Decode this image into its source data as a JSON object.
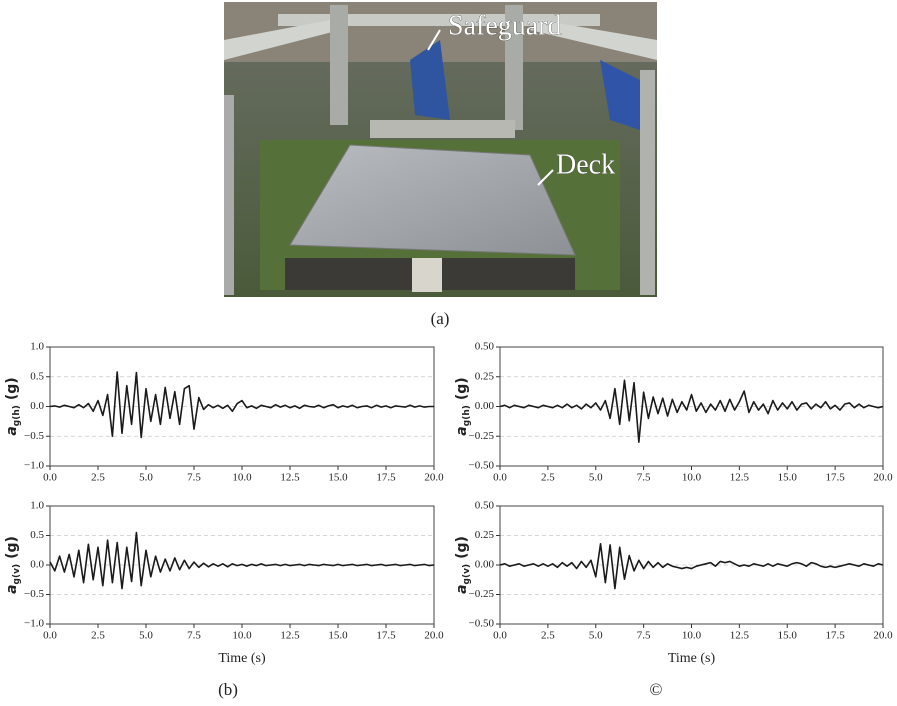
{
  "figure": {
    "photo": {
      "labels": [
        "Safeguard",
        "Deck"
      ],
      "caption": "(a)"
    },
    "captions": [
      "(b)",
      "©"
    ]
  },
  "chart_data": [
    {
      "type": "line",
      "ylabel": {
        "main": "a",
        "sub": "g(h)",
        "unit": "(g)"
      },
      "x": [
        0,
        0.25,
        0.5,
        0.75,
        1,
        1.25,
        1.5,
        1.75,
        2,
        2.25,
        2.5,
        2.75,
        3,
        3.25,
        3.5,
        3.75,
        4,
        4.25,
        4.5,
        4.75,
        5,
        5.25,
        5.5,
        5.75,
        6,
        6.25,
        6.5,
        6.75,
        7,
        7.25,
        7.5,
        7.75,
        8,
        8.25,
        8.5,
        8.75,
        9,
        9.25,
        9.5,
        9.75,
        10,
        10.25,
        10.5,
        10.75,
        11,
        11.25,
        11.5,
        11.75,
        12,
        12.25,
        12.5,
        12.75,
        13,
        13.25,
        13.5,
        13.75,
        14,
        14.25,
        14.5,
        14.75,
        15,
        15.25,
        15.5,
        15.75,
        16,
        16.25,
        16.5,
        16.75,
        17,
        17.25,
        17.5,
        17.75,
        18,
        18.25,
        18.5,
        18.75,
        19,
        19.25,
        19.5,
        19.75,
        20
      ],
      "series": [
        {
          "color": "#1a1a1a",
          "values": [
            0,
            0.01,
            -0.01,
            0.02,
            0,
            -0.02,
            0.03,
            -0.02,
            0.05,
            -0.08,
            0.1,
            -0.15,
            0.2,
            -0.5,
            0.58,
            -0.45,
            0.35,
            -0.3,
            0.57,
            -0.52,
            0.3,
            -0.25,
            0.2,
            -0.3,
            0.32,
            -0.2,
            0.25,
            -0.3,
            0.3,
            0.35,
            -0.38,
            0.15,
            -0.05,
            0.03,
            -0.02,
            0.02,
            -0.03,
            0.02,
            -0.08,
            0.05,
            0.1,
            -0.02,
            0.01,
            -0.03,
            0.02,
            0,
            -0.02,
            0.03,
            -0.01,
            0.02,
            -0.02,
            0.01,
            -0.03,
            0.02,
            0,
            -0.01,
            0.02,
            -0.02,
            0.01,
            0.03,
            -0.02,
            0.01,
            -0.01,
            0.02,
            -0.02,
            0,
            0.01,
            -0.02,
            0.02,
            -0.01,
            0.01,
            -0.02,
            0.01,
            0,
            -0.01,
            0.02,
            -0.01,
            0.01,
            -0.01,
            0,
            0
          ]
        }
      ],
      "xlim": [
        0,
        20
      ],
      "ylim": [
        -1,
        1
      ],
      "xticks": [
        {
          "value": 0,
          "label": "0.0"
        },
        2.5,
        {
          "value": 5,
          "label": "5.0"
        },
        7.5,
        {
          "value": 10,
          "label": "10.0"
        },
        12.5,
        {
          "value": 15,
          "label": "15.0"
        },
        17.5,
        {
          "value": 20,
          "label": "20.0"
        }
      ],
      "yticks": [
        {
          "value": -1,
          "label": "−1.0"
        },
        {
          "value": -0.5,
          "label": "−0.5"
        },
        {
          "value": 0,
          "label": "0.0"
        },
        {
          "value": 0.5,
          "label": "0.5"
        },
        {
          "value": 1,
          "label": "1.0"
        }
      ],
      "grid": true
    },
    {
      "type": "line",
      "ylabel": {
        "main": "a",
        "sub": "g(v)",
        "unit": "(g)"
      },
      "xlabel": "Time (s)",
      "x": [
        0,
        0.25,
        0.5,
        0.75,
        1,
        1.25,
        1.5,
        1.75,
        2,
        2.25,
        2.5,
        2.75,
        3,
        3.25,
        3.5,
        3.75,
        4,
        4.25,
        4.5,
        4.75,
        5,
        5.25,
        5.5,
        5.75,
        6,
        6.25,
        6.5,
        6.75,
        7,
        7.25,
        7.5,
        7.75,
        8,
        8.25,
        8.5,
        8.75,
        9,
        9.25,
        9.5,
        9.75,
        10,
        10.25,
        10.5,
        10.75,
        11,
        11.25,
        11.5,
        11.75,
        12,
        12.25,
        12.5,
        12.75,
        13,
        13.25,
        13.5,
        13.75,
        14,
        14.25,
        14.5,
        14.75,
        15,
        15.25,
        15.5,
        15.75,
        16,
        16.25,
        16.5,
        16.75,
        17,
        17.25,
        17.5,
        17.75,
        18,
        18.25,
        18.5,
        18.75,
        19,
        19.25,
        19.5,
        19.75,
        20
      ],
      "series": [
        {
          "color": "#1a1a1a",
          "values": [
            0.05,
            -0.1,
            0.15,
            -0.12,
            0.18,
            -0.2,
            0.25,
            -0.3,
            0.35,
            -0.25,
            0.3,
            -0.35,
            0.42,
            -0.3,
            0.38,
            -0.4,
            0.3,
            -0.28,
            0.55,
            -0.35,
            0.25,
            -0.2,
            0.15,
            -0.12,
            0.1,
            -0.1,
            0.12,
            -0.08,
            0.08,
            -0.06,
            0.05,
            -0.04,
            0.03,
            -0.03,
            0.02,
            -0.02,
            0.02,
            -0.03,
            0.02,
            -0.01,
            0.01,
            -0.02,
            0.01,
            -0.01,
            0.02,
            -0.01,
            0,
            0.01,
            -0.01,
            0.01,
            -0.01,
            0,
            0.01,
            -0.01,
            0.01,
            0,
            -0.01,
            0.01,
            0,
            -0.01,
            0.01,
            -0.01,
            0,
            0.01,
            -0.01,
            0,
            0.01,
            -0.01,
            0,
            0.01,
            -0.01,
            0,
            0.01,
            -0.01,
            0,
            0.01,
            -0.01,
            0,
            0.01,
            -0.01,
            0
          ]
        }
      ],
      "xlim": [
        0,
        20
      ],
      "ylim": [
        -1,
        1
      ],
      "xticks": [
        {
          "value": 0,
          "label": "0.0"
        },
        2.5,
        {
          "value": 5,
          "label": "5.0"
        },
        7.5,
        {
          "value": 10,
          "label": "10.0"
        },
        12.5,
        {
          "value": 15,
          "label": "15.0"
        },
        17.5,
        {
          "value": 20,
          "label": "20.0"
        }
      ],
      "yticks": [
        {
          "value": -1,
          "label": "−1.0"
        },
        {
          "value": -0.5,
          "label": "−0.5"
        },
        {
          "value": 0,
          "label": "0.0"
        },
        {
          "value": 0.5,
          "label": "0.5"
        },
        {
          "value": 1,
          "label": "1.0"
        }
      ],
      "grid": true
    },
    {
      "type": "line",
      "ylabel": {
        "main": "a",
        "sub": "g(h)",
        "unit": "(g)"
      },
      "x": [
        0,
        0.25,
        0.5,
        0.75,
        1,
        1.25,
        1.5,
        1.75,
        2,
        2.25,
        2.5,
        2.75,
        3,
        3.25,
        3.5,
        3.75,
        4,
        4.25,
        4.5,
        4.75,
        5,
        5.25,
        5.5,
        5.75,
        6,
        6.25,
        6.5,
        6.75,
        7,
        7.25,
        7.5,
        7.75,
        8,
        8.25,
        8.5,
        8.75,
        9,
        9.25,
        9.5,
        9.75,
        10,
        10.25,
        10.5,
        10.75,
        11,
        11.25,
        11.5,
        11.75,
        12,
        12.25,
        12.5,
        12.75,
        13,
        13.25,
        13.5,
        13.75,
        14,
        14.25,
        14.5,
        14.75,
        15,
        15.25,
        15.5,
        15.75,
        16,
        16.25,
        16.5,
        16.75,
        17,
        17.25,
        17.5,
        17.75,
        18,
        18.25,
        18.5,
        18.75,
        19,
        19.25,
        19.5,
        19.75,
        20
      ],
      "series": [
        {
          "color": "#1a1a1a",
          "values": [
            0,
            0.01,
            -0.01,
            0.01,
            0,
            -0.01,
            0.01,
            0,
            -0.01,
            0.01,
            0,
            -0.01,
            0.01,
            -0.01,
            0.02,
            -0.01,
            0.01,
            -0.02,
            0.02,
            -0.01,
            0.03,
            -0.03,
            0.05,
            -0.1,
            0.15,
            -0.15,
            0.22,
            -0.12,
            0.2,
            -0.3,
            0.12,
            -0.1,
            0.08,
            -0.06,
            0.07,
            -0.08,
            0.06,
            -0.05,
            0.04,
            -0.03,
            0.1,
            -0.04,
            0.03,
            -0.05,
            0.02,
            -0.03,
            0.05,
            -0.04,
            0.06,
            -0.03,
            0.04,
            0.13,
            -0.05,
            0.04,
            -0.03,
            0.02,
            -0.06,
            0.05,
            -0.03,
            0.03,
            -0.02,
            0.04,
            -0.03,
            0.02,
            0.03,
            -0.02,
            0.02,
            -0.01,
            0.04,
            -0.02,
            0.01,
            -0.03,
            0.02,
            0.03,
            -0.01,
            0.02,
            -0.01,
            0.01,
            0,
            -0.01,
            0
          ]
        }
      ],
      "xlim": [
        0,
        20
      ],
      "ylim": [
        -0.5,
        0.5
      ],
      "xticks": [
        {
          "value": 0,
          "label": "0.0"
        },
        2.5,
        {
          "value": 5,
          "label": "5.0"
        },
        7.5,
        {
          "value": 10,
          "label": "10.0"
        },
        12.5,
        {
          "value": 15,
          "label": "15.0"
        },
        17.5,
        {
          "value": 20,
          "label": "20.0"
        }
      ],
      "yticks": [
        {
          "value": -0.5,
          "label": "−0.50"
        },
        {
          "value": -0.25,
          "label": "−0.25"
        },
        {
          "value": 0,
          "label": "0.00"
        },
        {
          "value": 0.25,
          "label": "0.25"
        },
        {
          "value": 0.5,
          "label": "0.50"
        }
      ],
      "grid": true
    },
    {
      "type": "line",
      "ylabel": {
        "main": "a",
        "sub": "g(v)",
        "unit": "(g)"
      },
      "xlabel": "Time (s)",
      "x": [
        0,
        0.25,
        0.5,
        0.75,
        1,
        1.25,
        1.5,
        1.75,
        2,
        2.25,
        2.5,
        2.75,
        3,
        3.25,
        3.5,
        3.75,
        4,
        4.25,
        4.5,
        4.75,
        5,
        5.25,
        5.5,
        5.75,
        6,
        6.25,
        6.5,
        6.75,
        7,
        7.25,
        7.5,
        7.75,
        8,
        8.25,
        8.5,
        8.75,
        9,
        9.25,
        9.5,
        9.75,
        10,
        10.25,
        10.5,
        10.75,
        11,
        11.25,
        11.5,
        11.75,
        12,
        12.25,
        12.5,
        12.75,
        13,
        13.25,
        13.5,
        13.75,
        14,
        14.25,
        14.5,
        14.75,
        15,
        15.25,
        15.5,
        15.75,
        16,
        16.25,
        16.5,
        16.75,
        17,
        17.25,
        17.5,
        17.75,
        18,
        18.25,
        18.5,
        18.75,
        19,
        19.25,
        19.5,
        19.75,
        20
      ],
      "series": [
        {
          "color": "#1a1a1a",
          "values": [
            0,
            0.01,
            -0.01,
            0,
            0.01,
            -0.01,
            0,
            0.01,
            -0.01,
            0.01,
            -0.01,
            0.01,
            -0.02,
            0.02,
            -0.01,
            0.02,
            -0.03,
            0.03,
            -0.02,
            0.04,
            -0.1,
            0.18,
            -0.15,
            0.17,
            -0.2,
            0.15,
            -0.12,
            0.08,
            -0.05,
            0.04,
            -0.03,
            0.03,
            -0.02,
            0.02,
            -0.02,
            0.01,
            -0.01,
            -0.02,
            -0.03,
            -0.02,
            -0.03,
            -0.01,
            0,
            0.01,
            0.02,
            -0.01,
            0.03,
            0.02,
            0.03,
            0.01,
            -0.01,
            0,
            -0.01,
            0.01,
            0,
            -0.01,
            0.01,
            -0.01,
            0.01,
            0,
            -0.01,
            0.01,
            0.02,
            0.01,
            -0.01,
            0.02,
            0.01,
            -0.01,
            -0.02,
            -0.01,
            -0.02,
            -0.01,
            0,
            0.01,
            0,
            -0.01,
            0.01,
            0,
            -0.01,
            0.01,
            0
          ]
        }
      ],
      "xlim": [
        0,
        20
      ],
      "ylim": [
        -0.5,
        0.5
      ],
      "xticks": [
        {
          "value": 0,
          "label": "0.0"
        },
        2.5,
        {
          "value": 5,
          "label": "5.0"
        },
        7.5,
        {
          "value": 10,
          "label": "10.0"
        },
        12.5,
        {
          "value": 15,
          "label": "15.0"
        },
        17.5,
        {
          "value": 20,
          "label": "20.0"
        }
      ],
      "yticks": [
        {
          "value": -0.5,
          "label": "−0.50"
        },
        {
          "value": -0.25,
          "label": "−0.25"
        },
        {
          "value": 0,
          "label": "0.00"
        },
        {
          "value": 0.25,
          "label": "0.25"
        },
        {
          "value": 0.5,
          "label": "0.50"
        }
      ],
      "grid": true
    }
  ]
}
